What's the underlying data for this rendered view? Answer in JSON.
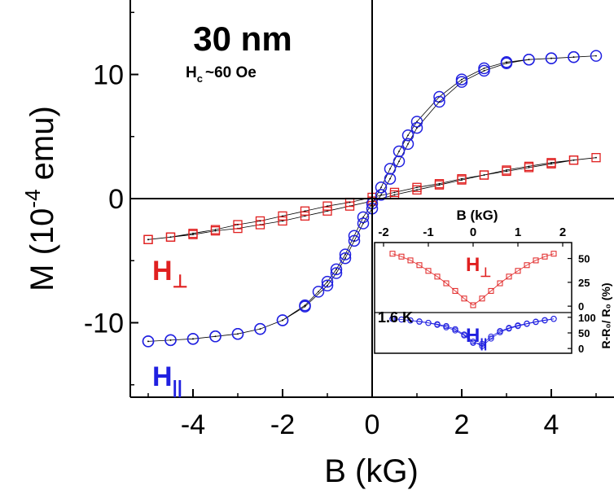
{
  "chart_data": [
    {
      "type": "scatter",
      "title": "30 nm",
      "annotation_hc": "~60 Oe",
      "annotation_hc_symbol": "H",
      "annotation_hc_sub": "c",
      "xlabel": "B (kG)",
      "ylabel_prefix": "M (10",
      "ylabel_exp": "-4",
      "ylabel_suffix": " emu)",
      "xlim": [
        -5.4,
        5.4
      ],
      "ylim": [
        -16,
        16
      ],
      "xticks": [
        -4,
        -2,
        0,
        2,
        4
      ],
      "xtick_labels": [
        "-4",
        "-2",
        "0",
        "2",
        "4"
      ],
      "yticks": [
        -10,
        0,
        10
      ],
      "ytick_labels": [
        "-10",
        "0",
        "10"
      ],
      "series": [
        {
          "name": "H⊥",
          "symbol": "H",
          "subscript": "⊥",
          "color": "#e02020",
          "marker": "square",
          "x": [
            -5.0,
            -4.5,
            -4.0,
            -3.5,
            -3.0,
            -2.5,
            -2.0,
            -1.5,
            -1.0,
            -0.5,
            0.0,
            0.5,
            1.0,
            1.5,
            2.0,
            2.5,
            3.0,
            3.5,
            4.0,
            4.5,
            5.0,
            4.5,
            4.0,
            3.5,
            3.0,
            2.5,
            2.0,
            1.5,
            1.0,
            0.5,
            0.0,
            -0.5,
            -1.0,
            -1.5,
            -2.0,
            -2.5,
            -3.0,
            -3.5,
            -4.0,
            -4.5,
            -5.0
          ],
          "y": [
            -3.3,
            -3.1,
            -2.9,
            -2.6,
            -2.4,
            -2.1,
            -1.8,
            -1.4,
            -1.0,
            -0.6,
            -0.2,
            0.3,
            0.7,
            1.1,
            1.5,
            1.9,
            2.3,
            2.6,
            2.9,
            3.1,
            3.3,
            3.1,
            2.8,
            2.5,
            2.2,
            1.9,
            1.6,
            1.2,
            0.9,
            0.5,
            0.1,
            -0.3,
            -0.6,
            -1.0,
            -1.4,
            -1.8,
            -2.1,
            -2.5,
            -2.8,
            -3.1,
            -3.3
          ]
        },
        {
          "name": "H∥",
          "symbol": "H",
          "subscript": "||",
          "color": "#2020e0",
          "marker": "circle",
          "x": [
            -5.0,
            -4.5,
            -4.0,
            -3.5,
            -3.0,
            -2.5,
            -2.0,
            -1.5,
            -1.2,
            -1.0,
            -0.8,
            -0.6,
            -0.4,
            -0.2,
            0.0,
            0.2,
            0.4,
            0.6,
            0.8,
            1.0,
            1.5,
            2.0,
            2.5,
            3.0,
            3.5,
            4.0,
            4.5,
            5.0,
            4.5,
            4.0,
            3.5,
            3.0,
            2.5,
            2.0,
            1.5,
            1.0,
            0.8,
            0.6,
            0.4,
            0.2,
            0.0,
            -0.2,
            -0.4,
            -0.6,
            -0.8,
            -1.0,
            -1.5,
            -2.0,
            -2.5,
            -3.0,
            -3.5,
            -4.0,
            -4.5,
            -5.0
          ],
          "y": [
            -11.5,
            -11.4,
            -11.3,
            -11.1,
            -10.9,
            -10.5,
            -9.8,
            -8.6,
            -7.5,
            -6.7,
            -5.7,
            -4.5,
            -3.0,
            -1.5,
            -0.4,
            0.9,
            2.4,
            3.8,
            5.1,
            6.2,
            8.2,
            9.6,
            10.5,
            11.0,
            11.2,
            11.3,
            11.4,
            11.5,
            11.4,
            11.3,
            11.2,
            10.9,
            10.3,
            9.4,
            7.8,
            5.7,
            4.4,
            3.0,
            1.6,
            0.3,
            -0.8,
            -2.0,
            -3.4,
            -4.8,
            -6.0,
            -7.0,
            -8.7,
            -9.8,
            -10.5,
            -10.9,
            -11.1,
            -11.3,
            -11.4,
            -11.5
          ]
        }
      ]
    },
    {
      "type": "scatter",
      "inset": true,
      "annotation_temp": "1.6 K",
      "xlabel": "B (kG)",
      "ylabel": "R-R₀/ R₀ (%)",
      "xlim": [
        -2.2,
        2.2
      ],
      "xticks": [
        -2,
        -1,
        0,
        1,
        2
      ],
      "xtick_labels": [
        "-2",
        "-1",
        "0",
        "1",
        "2"
      ],
      "top_panel": {
        "label_symbol": "H",
        "label_sub": "⊥",
        "color": "#e02020",
        "marker": "square",
        "ylim": [
          -5,
          65
        ],
        "yticks": [
          0,
          25,
          50
        ],
        "ytick_labels": [
          "0",
          "25",
          "50"
        ],
        "x": [
          -1.8,
          -1.6,
          -1.4,
          -1.2,
          -1.0,
          -0.8,
          -0.6,
          -0.4,
          -0.2,
          0.0,
          0.2,
          0.4,
          0.6,
          0.8,
          1.0,
          1.2,
          1.4,
          1.6,
          1.8
        ],
        "y": [
          55,
          52,
          48,
          43,
          37,
          31,
          24,
          16,
          8,
          1,
          8,
          16,
          24,
          31,
          37,
          43,
          48,
          52,
          55
        ]
      },
      "bottom_panel": {
        "label_symbol": "H",
        "label_sub": "||",
        "color": "#2020e0",
        "marker": "circle",
        "ylim": [
          -10,
          110
        ],
        "yticks": [
          0,
          50,
          100
        ],
        "ytick_labels": [
          "0",
          "50",
          "100"
        ],
        "x": [
          -1.8,
          -1.6,
          -1.4,
          -1.2,
          -1.0,
          -0.8,
          -0.6,
          -0.4,
          -0.2,
          0.0,
          0.2,
          0.4,
          0.6,
          0.8,
          1.0,
          1.2,
          1.4,
          1.6,
          1.8,
          1.8,
          1.6,
          1.4,
          1.2,
          1.0,
          0.8,
          0.6,
          0.4,
          0.2,
          0.0,
          -0.2,
          -0.4,
          -0.6,
          -0.8,
          -1.0,
          -1.2,
          -1.4,
          -1.6,
          -1.8
        ],
        "y": [
          95,
          93,
          90,
          86,
          82,
          78,
          72,
          62,
          45,
          22,
          8,
          32,
          52,
          64,
          72,
          79,
          85,
          90,
          95,
          95,
          91,
          86,
          80,
          74,
          66,
          56,
          38,
          15,
          18,
          42,
          58,
          68,
          76,
          82,
          87,
          90,
          93,
          95
        ]
      }
    }
  ]
}
